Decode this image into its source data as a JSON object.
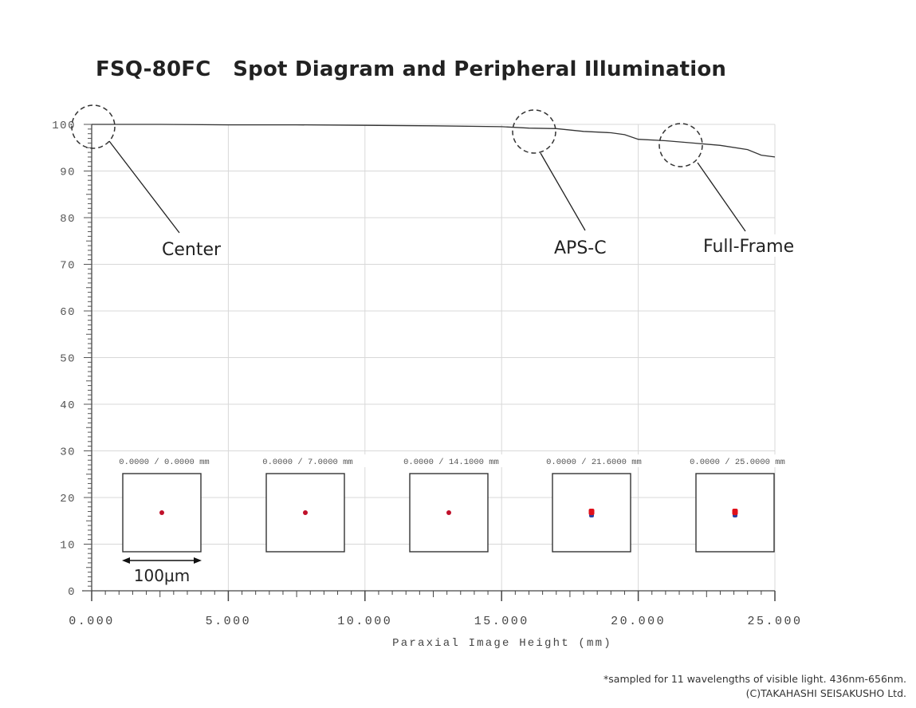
{
  "title": "FSQ-80FC   Spot Diagram and Peripheral Illumination",
  "footnote": {
    "line1": "*sampled for 11 wavelengths of visible light. 436nm-656nm.",
    "line2": "(C)TAKAHASHI SEISAKUSHO Ltd."
  },
  "annotations": [
    {
      "label": "Center",
      "x_mm": 0.0,
      "y": 100
    },
    {
      "label": "APS-C",
      "x_mm": 16.7,
      "y": 99.1
    },
    {
      "label": "Full-Frame",
      "x_mm": 21.6,
      "y": 96.0
    }
  ],
  "spot_diagrams": [
    {
      "label": "0.0000 /    0.0000 mm",
      "field_mm": 0.0,
      "colors": [
        "#c0102a"
      ]
    },
    {
      "label": "0.0000 /    7.0000 mm",
      "field_mm": 7.0,
      "colors": [
        "#c0102a"
      ]
    },
    {
      "label": "0.0000 /  14.1000 mm",
      "field_mm": 14.1,
      "colors": [
        "#c0102a"
      ]
    },
    {
      "label": "0.0000 /  21.6000 mm",
      "field_mm": 21.6,
      "colors": [
        "#e0101a",
        "#3040a0"
      ]
    },
    {
      "label": "0.0000 /  25.0000 mm",
      "field_mm": 25.0,
      "colors": [
        "#e0101a",
        "#3040a0"
      ]
    }
  ],
  "scale_bar": "100μm",
  "chart_data": {
    "type": "line",
    "title": "FSQ-80FC   Spot Diagram and Peripheral Illumination",
    "xlabel": "Paraxial Image Height (mm)",
    "ylabel": "",
    "xlim": [
      0,
      25
    ],
    "ylim": [
      0,
      100
    ],
    "x_ticks": [
      "0.000",
      "5.000",
      "10.000",
      "15.000",
      "20.000",
      "25.000"
    ],
    "y_ticks": [
      "0",
      "10",
      "20",
      "30",
      "40",
      "50",
      "60",
      "70",
      "80",
      "90",
      "100"
    ],
    "grid": true,
    "series": [
      {
        "name": "Peripheral Illumination (%)",
        "x": [
          0,
          2.5,
          5,
          7.5,
          10,
          12.5,
          15,
          16,
          17,
          18,
          19,
          19.5,
          20,
          21,
          22,
          23,
          24,
          24.5,
          25
        ],
        "values": [
          100,
          100,
          99.9,
          99.9,
          99.8,
          99.7,
          99.5,
          99.2,
          99.1,
          98.5,
          98.2,
          97.8,
          96.8,
          96.5,
          96.0,
          95.5,
          94.6,
          93.4,
          93.0
        ]
      }
    ],
    "annotations": [
      "Center",
      "APS-C",
      "Full-Frame"
    ]
  }
}
